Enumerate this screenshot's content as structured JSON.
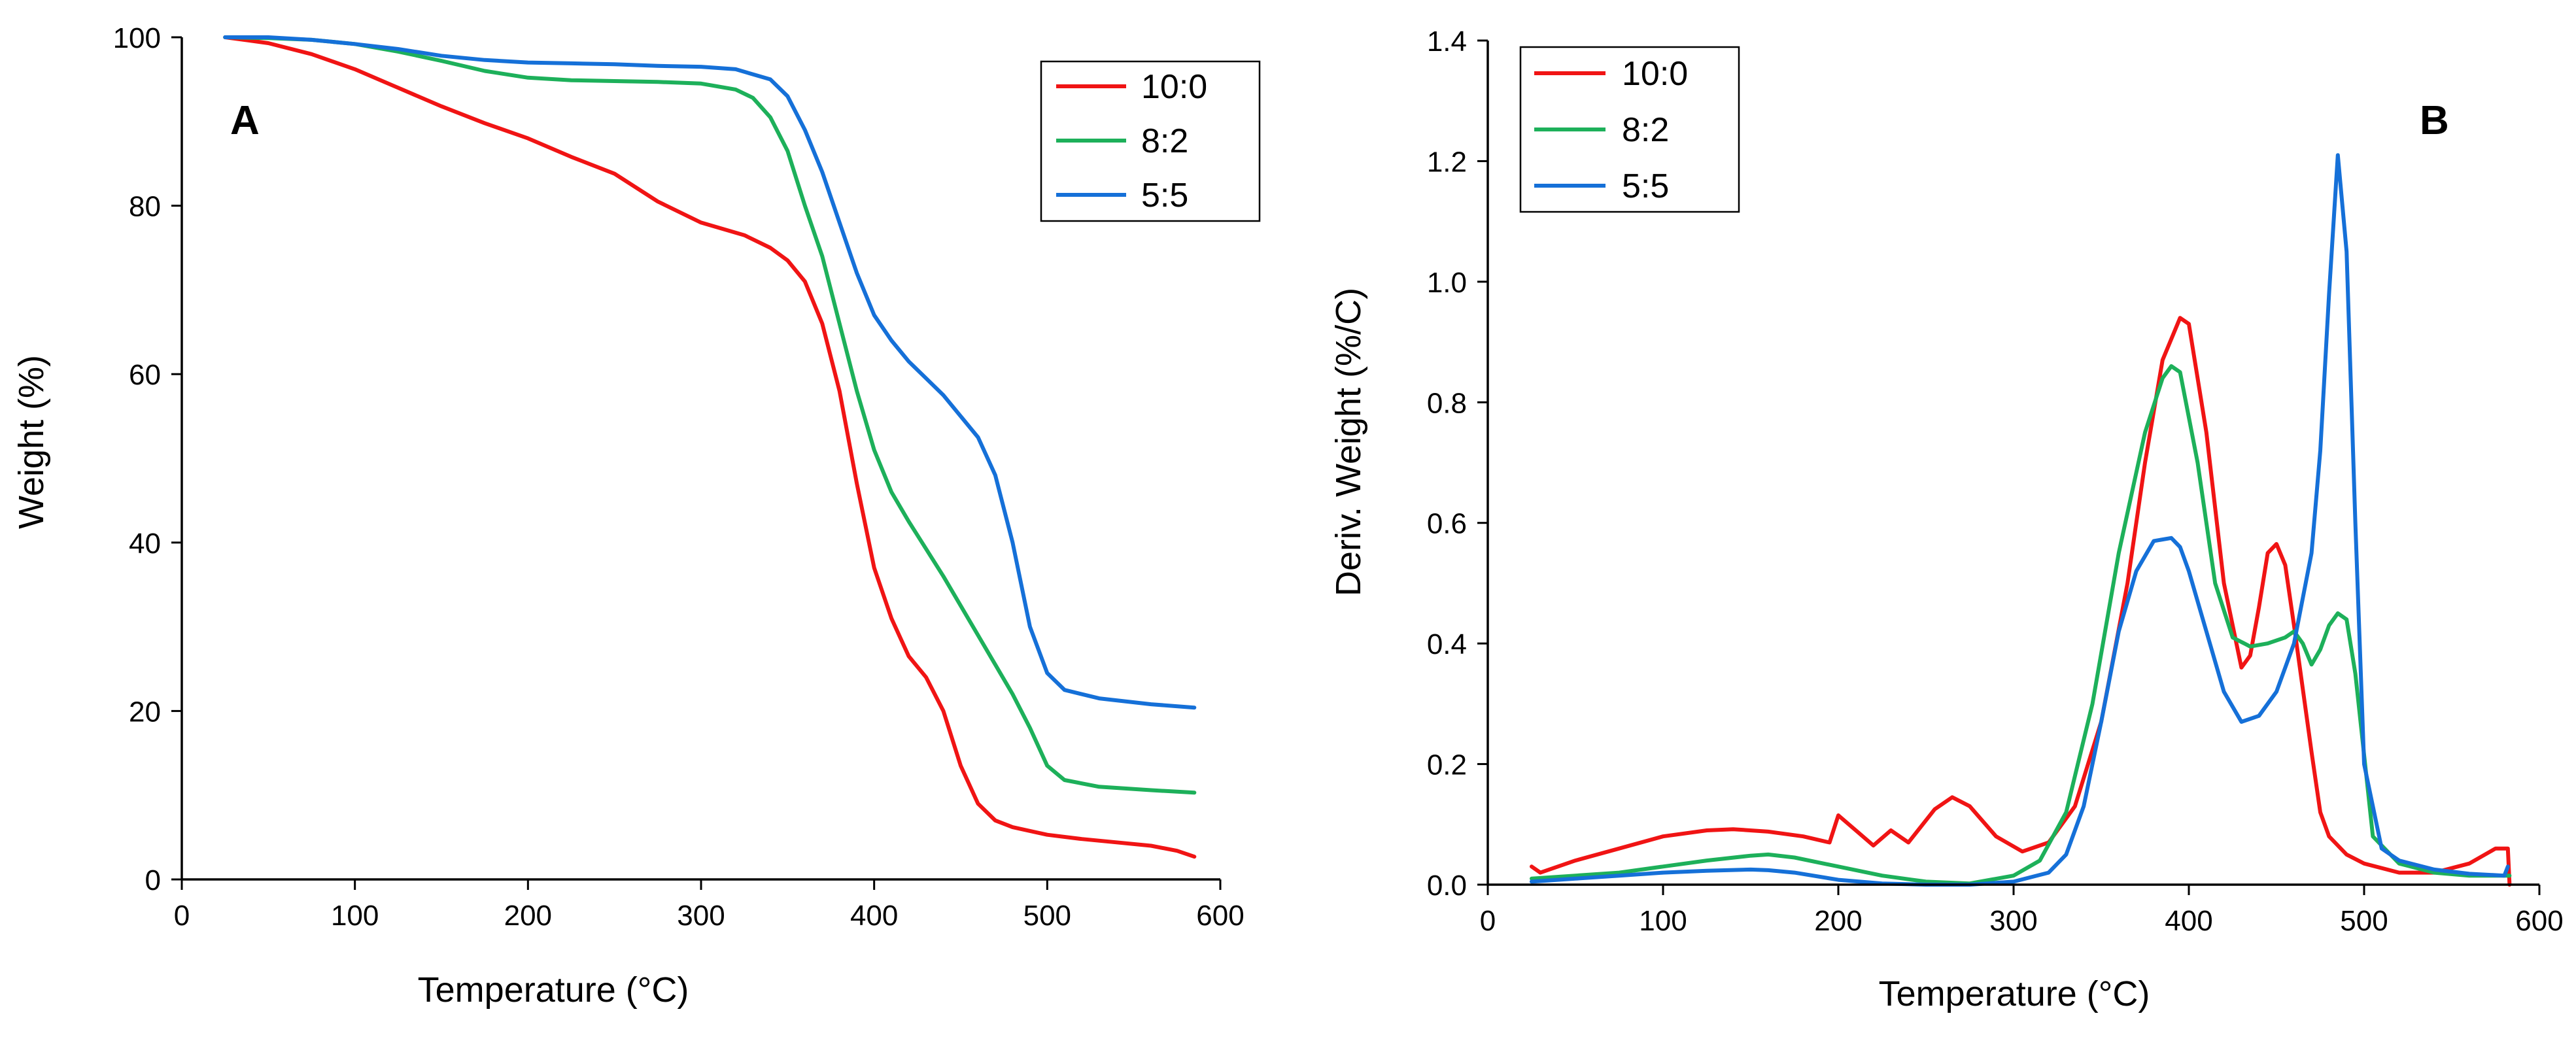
{
  "colors": {
    "10:0": "#f01414",
    "8:2": "#1db05a",
    "5:5": "#1570d8"
  },
  "chart_data": [
    {
      "type": "line",
      "panel_label": "A",
      "title": "",
      "xlabel": "Temperature (°C)",
      "ylabel": "Weight (%)",
      "xlim": [
        0,
        600
      ],
      "ylim": [
        0,
        100
      ],
      "xticks": [
        0,
        100,
        200,
        300,
        400,
        500,
        600
      ],
      "yticks": [
        0,
        20,
        40,
        60,
        80,
        100
      ],
      "legend": [
        "10:0",
        "8:2",
        "5:5"
      ],
      "legend_position": "top-right",
      "grid": false,
      "series": [
        {
          "name": "10:0",
          "x": [
            25,
            50,
            75,
            100,
            125,
            150,
            175,
            200,
            225,
            250,
            275,
            300,
            325,
            340,
            350,
            360,
            370,
            380,
            390,
            400,
            410,
            420,
            430,
            440,
            450,
            460,
            470,
            480,
            500,
            520,
            540,
            560,
            575,
            585
          ],
          "y": [
            100,
            99.3,
            98,
            96.2,
            94,
            91.8,
            89.8,
            88,
            85.8,
            83.8,
            80.5,
            78,
            76.5,
            75,
            73.5,
            71,
            66,
            58,
            47,
            37,
            31,
            26.5,
            24,
            20,
            13.5,
            9,
            7,
            6.2,
            5.3,
            4.8,
            4.4,
            4,
            3.4,
            2.7
          ]
        },
        {
          "name": "8:2",
          "x": [
            25,
            50,
            75,
            100,
            125,
            150,
            175,
            200,
            225,
            250,
            275,
            300,
            320,
            330,
            340,
            350,
            360,
            370,
            380,
            390,
            400,
            410,
            420,
            440,
            460,
            480,
            490,
            500,
            510,
            530,
            560,
            585
          ],
          "y": [
            100,
            99.9,
            99.7,
            99.2,
            98.3,
            97.2,
            96,
            95.2,
            94.9,
            94.8,
            94.7,
            94.5,
            93.8,
            92.8,
            90.5,
            86.5,
            80,
            74,
            66,
            58,
            51,
            46,
            42.5,
            36,
            29,
            22,
            18,
            13.5,
            11.8,
            11,
            10.6,
            10.3
          ]
        },
        {
          "name": "5:5",
          "x": [
            25,
            50,
            75,
            100,
            125,
            150,
            175,
            200,
            225,
            250,
            275,
            300,
            320,
            340,
            350,
            360,
            370,
            380,
            390,
            400,
            410,
            420,
            430,
            440,
            450,
            460,
            470,
            480,
            490,
            500,
            510,
            530,
            560,
            585
          ],
          "y": [
            100,
            100,
            99.7,
            99.2,
            98.6,
            97.8,
            97.3,
            97,
            96.9,
            96.8,
            96.6,
            96.5,
            96.2,
            95,
            93,
            89,
            84,
            78,
            72,
            67,
            64,
            61.5,
            59.5,
            57.5,
            55,
            52.5,
            48,
            40,
            30,
            24.5,
            22.5,
            21.5,
            20.8,
            20.4
          ]
        }
      ]
    },
    {
      "type": "line",
      "panel_label": "B",
      "title": "",
      "xlabel": "Temperature (°C)",
      "ylabel": "Deriv. Weight (%/C)",
      "xlim": [
        0,
        600
      ],
      "ylim": [
        0,
        1.4
      ],
      "xticks": [
        0,
        100,
        200,
        300,
        400,
        500,
        600
      ],
      "yticks": [
        0.0,
        0.2,
        0.4,
        0.6,
        0.8,
        1.0,
        1.2,
        1.4
      ],
      "yticks_labels": [
        "0.0",
        "0.2",
        "0.4",
        "0.6",
        "0.8",
        "1.0",
        "1.2",
        "1.4"
      ],
      "legend": [
        "10:0",
        "8:2",
        "5:5"
      ],
      "legend_position": "top-left",
      "grid": false,
      "series": [
        {
          "name": "10:0",
          "x": [
            25,
            30,
            50,
            75,
            100,
            125,
            140,
            160,
            180,
            195,
            200,
            210,
            220,
            230,
            240,
            255,
            265,
            275,
            290,
            305,
            320,
            335,
            350,
            365,
            375,
            385,
            395,
            400,
            410,
            420,
            430,
            435,
            440,
            445,
            450,
            455,
            460,
            470,
            475,
            480,
            490,
            500,
            520,
            540,
            560,
            575,
            582,
            583
          ],
          "y": [
            0.03,
            0.02,
            0.04,
            0.06,
            0.08,
            0.09,
            0.092,
            0.088,
            0.08,
            0.07,
            0.115,
            0.09,
            0.065,
            0.09,
            0.07,
            0.125,
            0.145,
            0.13,
            0.08,
            0.055,
            0.07,
            0.13,
            0.27,
            0.5,
            0.7,
            0.87,
            0.94,
            0.93,
            0.75,
            0.5,
            0.36,
            0.38,
            0.46,
            0.55,
            0.565,
            0.53,
            0.43,
            0.22,
            0.12,
            0.08,
            0.05,
            0.035,
            0.02,
            0.02,
            0.035,
            0.06,
            0.06,
            0.0
          ]
        },
        {
          "name": "8:2",
          "x": [
            25,
            50,
            75,
            100,
            125,
            150,
            160,
            175,
            200,
            225,
            250,
            275,
            300,
            315,
            330,
            345,
            360,
            375,
            385,
            390,
            395,
            405,
            415,
            425,
            435,
            445,
            455,
            460,
            465,
            470,
            475,
            480,
            485,
            490,
            495,
            505,
            520,
            540,
            560,
            583
          ],
          "y": [
            0.01,
            0.015,
            0.02,
            0.03,
            0.04,
            0.048,
            0.05,
            0.045,
            0.03,
            0.015,
            0.005,
            0.002,
            0.015,
            0.04,
            0.12,
            0.3,
            0.55,
            0.75,
            0.84,
            0.86,
            0.85,
            0.7,
            0.5,
            0.41,
            0.395,
            0.4,
            0.41,
            0.42,
            0.4,
            0.365,
            0.39,
            0.43,
            0.45,
            0.44,
            0.35,
            0.08,
            0.035,
            0.02,
            0.015,
            0.015
          ]
        },
        {
          "name": "5:5",
          "x": [
            25,
            50,
            75,
            100,
            125,
            150,
            160,
            175,
            200,
            225,
            250,
            275,
            300,
            320,
            330,
            340,
            350,
            360,
            370,
            380,
            390,
            395,
            400,
            410,
            420,
            430,
            440,
            450,
            460,
            470,
            475,
            480,
            485,
            490,
            495,
            500,
            510,
            520,
            540,
            560,
            580,
            582
          ],
          "y": [
            0.005,
            0.01,
            0.015,
            0.02,
            0.023,
            0.025,
            0.024,
            0.02,
            0.008,
            0.002,
            0.0,
            0.0,
            0.005,
            0.02,
            0.05,
            0.13,
            0.27,
            0.42,
            0.52,
            0.57,
            0.575,
            0.56,
            0.52,
            0.42,
            0.32,
            0.27,
            0.28,
            0.32,
            0.4,
            0.55,
            0.72,
            0.98,
            1.21,
            1.05,
            0.6,
            0.2,
            0.06,
            0.04,
            0.025,
            0.018,
            0.015,
            0.03
          ]
        }
      ]
    }
  ]
}
